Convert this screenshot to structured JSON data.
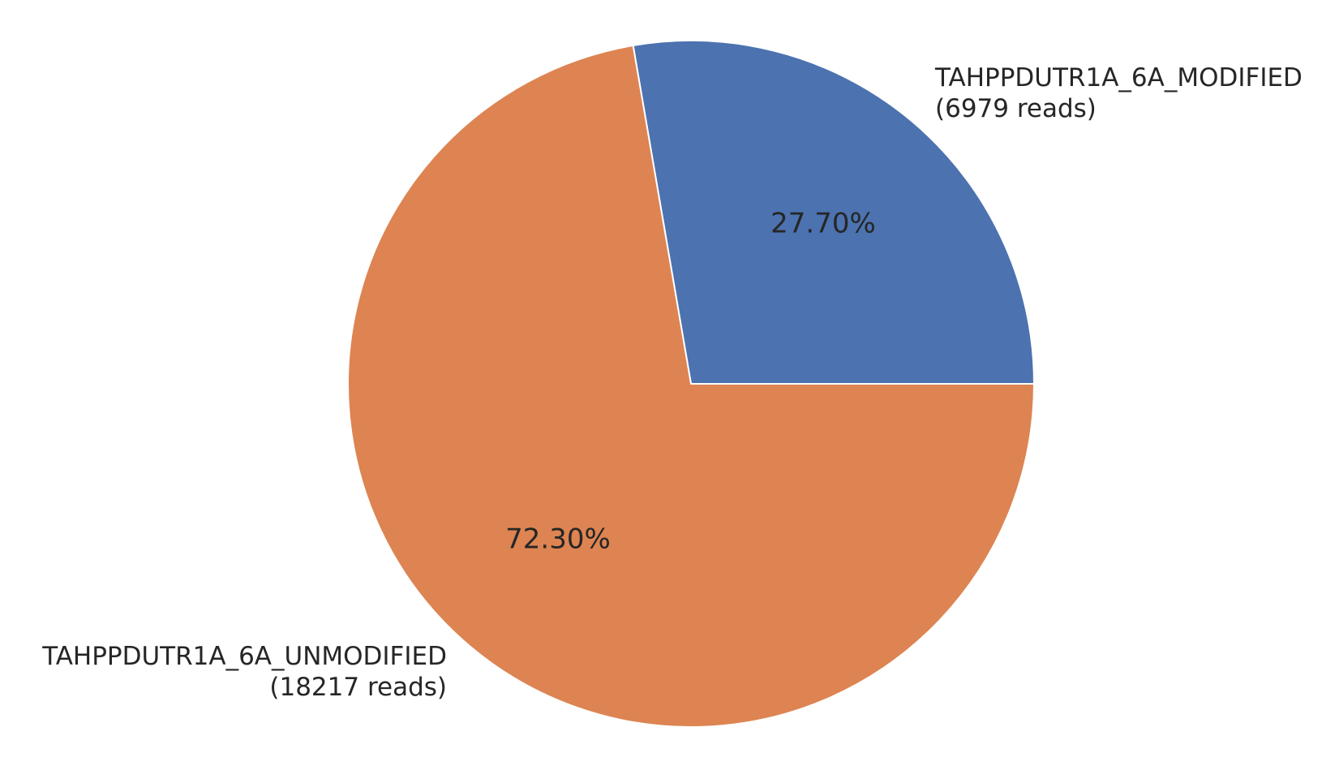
{
  "chart_data": {
    "type": "pie",
    "title": "",
    "slices": [
      {
        "name": "TAHPPDUTR1A_6A_MODIFIED",
        "reads": 6979,
        "reads_label": "(6979 reads)",
        "percent": 27.7,
        "percent_label": "27.70%",
        "color": "#4c72b0"
      },
      {
        "name": "TAHPPDUTR1A_6A_UNMODIFIED",
        "reads": 18217,
        "reads_label": "(18217 reads)",
        "percent": 72.3,
        "percent_label": "72.30%",
        "color": "#dd8452"
      }
    ],
    "start_angle_deg": 0,
    "direction": "counterclockwise",
    "wedge_edge_color": "#ffffff"
  }
}
